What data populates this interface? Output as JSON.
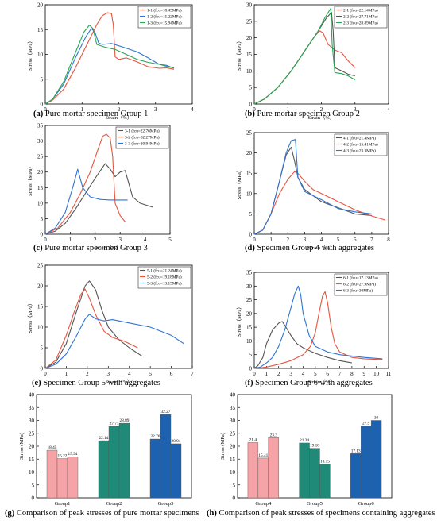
{
  "figure": {
    "captions": [
      {
        "letter": "(a)",
        "text": "Pure mortar specimen Group 1"
      },
      {
        "letter": "(b)",
        "text": "Pure mortar specimen Group 2"
      },
      {
        "letter": "(c)",
        "text": "Pure mortar specimen Group 3"
      },
      {
        "letter": "(d)",
        "text": "Specimen Group 4 with aggregates"
      },
      {
        "letter": "(e)",
        "text": "Specimen Group 5 with aggregates"
      },
      {
        "letter": "(f)",
        "text": "Specimen Group 6 with aggregates"
      },
      {
        "letter": "(g)",
        "text": "Comparison of peak stresses of pure mortar specimens"
      },
      {
        "letter": "(h)",
        "text": "Comparison of peak stresses of specimens containing aggregates"
      }
    ]
  },
  "colors": {
    "red": "#e8553f",
    "blue": "#2e74d4",
    "green": "#2aa652",
    "dark": "#555555",
    "pink": "#f5a3a6",
    "teal": "#1f8a78",
    "navy": "#1d62b0"
  },
  "chart_data": [
    {
      "type": "line",
      "xlabel": "Strain（%）",
      "ylabel": "Stress（MPa）",
      "xlim": [
        0,
        4
      ],
      "xticks": [
        0,
        1,
        2,
        3,
        4
      ],
      "ylim": [
        0,
        20
      ],
      "yticks": [
        0,
        5,
        10,
        15,
        20
      ],
      "series": [
        {
          "name": "1-1 (fcu=18.45MPa)",
          "color": "red",
          "x": [
            0,
            0.2,
            0.5,
            0.8,
            1.1,
            1.4,
            1.55,
            1.7,
            1.8,
            1.85,
            1.9,
            2.0,
            2.2,
            2.5,
            2.8,
            3.1,
            3.3,
            3.5
          ],
          "y": [
            0,
            0.8,
            3,
            7,
            11.5,
            16,
            17.8,
            18.4,
            18.2,
            16,
            9.5,
            9,
            9.3,
            8.5,
            7.5,
            7.2,
            7.3,
            7.0
          ]
        },
        {
          "name": "1-2 (fcu=15.22MPa)",
          "color": "blue",
          "x": [
            0,
            0.2,
            0.5,
            0.8,
            1.1,
            1.25,
            1.35,
            1.45,
            1.55,
            1.8,
            2.1,
            2.5,
            2.8,
            3.1,
            3.3,
            3.5
          ],
          "y": [
            0,
            1,
            4,
            9,
            13.5,
            15.2,
            14.5,
            12.3,
            12.0,
            12.2,
            11.5,
            10.5,
            9.3,
            8.0,
            7.8,
            7.2
          ]
        },
        {
          "name": "1-3 (fcu=15.94MPa)",
          "color": "green",
          "x": [
            0,
            0.2,
            0.5,
            0.8,
            1.05,
            1.2,
            1.3,
            1.4,
            1.6,
            1.9,
            2.2,
            2.5,
            2.8,
            3.1,
            3.3,
            3.5
          ],
          "y": [
            0,
            1,
            4.5,
            10,
            14.5,
            15.9,
            15.2,
            12.0,
            11.5,
            11.0,
            10.0,
            9.0,
            8.4,
            8.0,
            7.6,
            7.3
          ]
        }
      ]
    },
    {
      "type": "line",
      "xlabel": "Strain（%）",
      "ylabel": "Stress（MPa）",
      "xlim": [
        0,
        4
      ],
      "xticks": [
        0,
        1,
        2,
        3,
        4
      ],
      "ylim": [
        0,
        30
      ],
      "yticks": [
        0,
        5,
        10,
        15,
        20,
        25,
        30
      ],
      "series": [
        {
          "name": "2-1 (fcu=22.14MPa)",
          "color": "red",
          "x": [
            0,
            0.3,
            0.7,
            1.1,
            1.5,
            1.8,
            1.95,
            2.05,
            2.2,
            2.4,
            2.6,
            2.8,
            3.0
          ],
          "y": [
            0,
            1.5,
            5,
            10,
            16,
            20.5,
            22.1,
            21.5,
            18,
            16.3,
            15.5,
            13,
            11
          ]
        },
        {
          "name": "2-2 (fcu=27.71MPa)",
          "color": "dark",
          "x": [
            0,
            0.3,
            0.7,
            1.1,
            1.5,
            1.9,
            2.15,
            2.3,
            2.35,
            2.4,
            2.6,
            2.8,
            3.0
          ],
          "y": [
            0,
            1.5,
            5,
            10,
            16,
            22,
            26,
            27.7,
            22,
            11,
            10,
            9,
            8.5
          ]
        },
        {
          "name": "2-3 (fcu=28.89MPa)",
          "color": "green",
          "x": [
            0,
            0.3,
            0.7,
            1.1,
            1.5,
            1.9,
            2.1,
            2.28,
            2.32,
            2.4,
            2.6,
            2.8,
            3.0
          ],
          "y": [
            0,
            1.5,
            5,
            10,
            16,
            22,
            26,
            28.9,
            18,
            9.5,
            9.2,
            8.5,
            7.3
          ]
        }
      ]
    },
    {
      "type": "line",
      "xlabel": "Strain（%）",
      "ylabel": "Stress（MPa）",
      "xlim": [
        0,
        5
      ],
      "xticks": [
        0,
        1,
        2,
        3,
        4,
        5
      ],
      "ylim": [
        0,
        35
      ],
      "yticks": [
        0,
        5,
        10,
        15,
        20,
        25,
        30,
        35
      ],
      "series": [
        {
          "name": "3-1 (fcu=22.76MPa)",
          "color": "dark",
          "x": [
            0,
            0.4,
            0.8,
            1.2,
            1.6,
            2.0,
            2.4,
            2.6,
            2.8,
            3.0,
            3.2,
            3.5,
            3.8,
            4.3
          ],
          "y": [
            0,
            1,
            3.5,
            8,
            13,
            18,
            22.7,
            21,
            18.5,
            20,
            20.5,
            12,
            10,
            8.7
          ]
        },
        {
          "name": "3-2 (fcu=32.27MPa)",
          "color": "red",
          "x": [
            0,
            0.5,
            1.0,
            1.4,
            1.8,
            2.1,
            2.3,
            2.45,
            2.6,
            2.7,
            2.8,
            3.0,
            3.2
          ],
          "y": [
            0,
            2,
            7,
            13,
            20,
            27,
            31.5,
            32.2,
            31,
            25,
            10,
            6,
            4
          ]
        },
        {
          "name": "3-3 (fcu=20.94MPa)",
          "color": "blue",
          "x": [
            0,
            0.4,
            0.8,
            1.1,
            1.3,
            1.5,
            1.8,
            2.2,
            2.6,
            3.0,
            3.3
          ],
          "y": [
            0,
            2,
            7,
            15,
            20.9,
            15,
            12,
            11.2,
            11,
            11,
            11
          ]
        }
      ]
    },
    {
      "type": "line",
      "xlabel": "Strain（%）",
      "ylabel": "Stress（MPa）",
      "xlim": [
        0,
        8
      ],
      "xticks": [
        0,
        1,
        2,
        3,
        4,
        5,
        6,
        7,
        8
      ],
      "ylim": [
        0,
        25
      ],
      "yticks": [
        0,
        5,
        10,
        15,
        20,
        25
      ],
      "series": [
        {
          "name": "4-1 (fcu=21.4MPa)",
          "color": "dark",
          "x": [
            0,
            0.5,
            1.0,
            1.5,
            1.9,
            2.2,
            2.4,
            2.6,
            3.0,
            3.5,
            4.0,
            5.0,
            6.0,
            7.0
          ],
          "y": [
            0,
            1,
            5,
            13,
            19.5,
            21.4,
            18,
            14,
            11,
            9.5,
            8,
            6.5,
            5,
            4.6
          ]
        },
        {
          "name": "4-2 (fcu=15.41MPa)",
          "color": "red",
          "x": [
            0,
            0.5,
            1.0,
            1.5,
            2.0,
            2.4,
            2.6,
            3.0,
            3.5,
            4.0,
            5.0,
            6.0,
            7.0,
            7.8
          ],
          "y": [
            0,
            1,
            5,
            10,
            13.5,
            15.4,
            15,
            13,
            11,
            10,
            8,
            6,
            4.5,
            3.5
          ]
        },
        {
          "name": "4-3 (fcu=23.3MPa)",
          "color": "blue",
          "x": [
            0,
            0.5,
            1.0,
            1.5,
            1.9,
            2.2,
            2.45,
            2.6,
            3.0,
            3.5,
            4.0,
            5.0,
            6.0,
            7.0
          ],
          "y": [
            0,
            1,
            5,
            13,
            20,
            23,
            23.3,
            14,
            10.5,
            9.5,
            8.5,
            6.3,
            5.5,
            5.0
          ]
        }
      ]
    },
    {
      "type": "line",
      "xlabel": "Strain（%）",
      "ylabel": "Stress（MPa）",
      "xlim": [
        0,
        7
      ],
      "xticks": [
        0,
        1,
        2,
        3,
        4,
        5,
        6,
        7
      ],
      "ylim": [
        0,
        25
      ],
      "yticks": [
        0,
        5,
        10,
        15,
        20,
        25
      ],
      "series": [
        {
          "name": "5-1 (fcu=21.24MPa)",
          "color": "dark",
          "x": [
            0,
            0.5,
            1.0,
            1.5,
            1.9,
            2.1,
            2.4,
            2.7,
            3.0,
            3.5,
            4.0,
            4.6
          ],
          "y": [
            0,
            1.5,
            6,
            14,
            20,
            21.2,
            19,
            14,
            10,
            7,
            5,
            3
          ]
        },
        {
          "name": "5-2 (fcu=19.18MPa)",
          "color": "red",
          "x": [
            0,
            0.5,
            1.0,
            1.4,
            1.7,
            1.9,
            2.1,
            2.4,
            2.8,
            3.2,
            3.8,
            4.4
          ],
          "y": [
            0,
            2,
            8,
            14,
            18,
            19.2,
            17,
            13,
            9,
            7.5,
            6.5,
            5
          ]
        },
        {
          "name": "5-3 (fcu=13.15MPa)",
          "color": "blue",
          "x": [
            0,
            0.5,
            1.0,
            1.5,
            1.9,
            2.1,
            2.4,
            2.8,
            3.2,
            4.0,
            5.0,
            6.0,
            6.6
          ],
          "y": [
            0,
            1,
            3.5,
            8,
            12,
            13.1,
            12,
            11.5,
            11.8,
            11,
            10,
            8,
            6
          ]
        }
      ]
    },
    {
      "type": "line",
      "xlabel": "Strain（%）",
      "ylabel": "Stress（MPa）",
      "xlim": [
        0,
        11
      ],
      "xticks": [
        0,
        1,
        2,
        3,
        4,
        5,
        6,
        7,
        8,
        9,
        10,
        11
      ],
      "ylim": [
        0,
        35
      ],
      "yticks": [
        0,
        5,
        10,
        15,
        20,
        25,
        30,
        35
      ],
      "series": [
        {
          "name": "6-1 (fcu=17.13MPa)",
          "color": "dark",
          "x": [
            0,
            0.3,
            0.7,
            1.0,
            1.5,
            2.0,
            2.3,
            2.6,
            3.0,
            3.5,
            4.0,
            5.0,
            6.0,
            7.0,
            8.0
          ],
          "y": [
            0,
            1,
            4,
            9,
            14,
            16.5,
            17.1,
            15,
            12,
            9,
            7.5,
            5.5,
            4,
            2.8,
            2
          ]
        },
        {
          "name": "6-2 (fcu=27.9MPa)",
          "color": "red",
          "x": [
            0,
            1.0,
            2.0,
            3.0,
            4.0,
            4.6,
            5.0,
            5.3,
            5.6,
            5.8,
            6.0,
            6.3,
            6.6,
            7.0,
            8.0,
            9.0,
            10.5
          ],
          "y": [
            0,
            0.5,
            1.5,
            2.8,
            5,
            8,
            13,
            20,
            26.5,
            27.9,
            24,
            15,
            9,
            6,
            4,
            3.5,
            3.2
          ]
        },
        {
          "name": "6-3 (fcu=30MPa)",
          "color": "blue",
          "x": [
            0,
            0.5,
            1.0,
            1.5,
            2.0,
            2.5,
            3.0,
            3.3,
            3.6,
            3.8,
            4.0,
            4.5,
            5.0,
            6.0,
            7.0,
            8.0,
            9.0,
            10.5
          ],
          "y": [
            0,
            0.5,
            2,
            4,
            8,
            14,
            22,
            27,
            30,
            27,
            20,
            12,
            8,
            6,
            5,
            4.5,
            4,
            3.5
          ]
        }
      ]
    },
    {
      "type": "bar",
      "ylabel": "Stress (MPa)",
      "ylim": [
        0,
        40
      ],
      "yticks": [
        0,
        5,
        10,
        15,
        20,
        25,
        30,
        35,
        40
      ],
      "categories": [
        "Group1",
        "Group2",
        "Group3"
      ],
      "groups": [
        {
          "values": [
            18.45,
            15.22,
            15.94
          ],
          "labels": [
            "18.45",
            "15.22",
            "15.94"
          ],
          "color": "pink"
        },
        {
          "values": [
            22.14,
            27.71,
            28.89
          ],
          "labels": [
            "22.14",
            "27.71",
            "28.89"
          ],
          "color": "teal"
        },
        {
          "values": [
            22.76,
            32.27,
            20.94
          ],
          "labels": [
            "22.76",
            "32.27",
            "20.94"
          ],
          "color": "navy"
        }
      ]
    },
    {
      "type": "bar",
      "ylabel": "Stress (MPa)",
      "ylim": [
        0,
        40
      ],
      "yticks": [
        0,
        5,
        10,
        15,
        20,
        25,
        30,
        35,
        40
      ],
      "categories": [
        "Group4",
        "Group5",
        "Group6"
      ],
      "groups": [
        {
          "values": [
            21.4,
            15.41,
            23.3
          ],
          "labels": [
            "21.4",
            "15.41",
            "23.3"
          ],
          "color": "pink"
        },
        {
          "values": [
            21.24,
            19.18,
            13.15
          ],
          "labels": [
            "21.24",
            "19.18",
            "13.15"
          ],
          "color": "teal"
        },
        {
          "values": [
            17.13,
            27.9,
            30
          ],
          "labels": [
            "17.13",
            "27.9",
            "30"
          ],
          "color": "navy"
        }
      ]
    }
  ]
}
